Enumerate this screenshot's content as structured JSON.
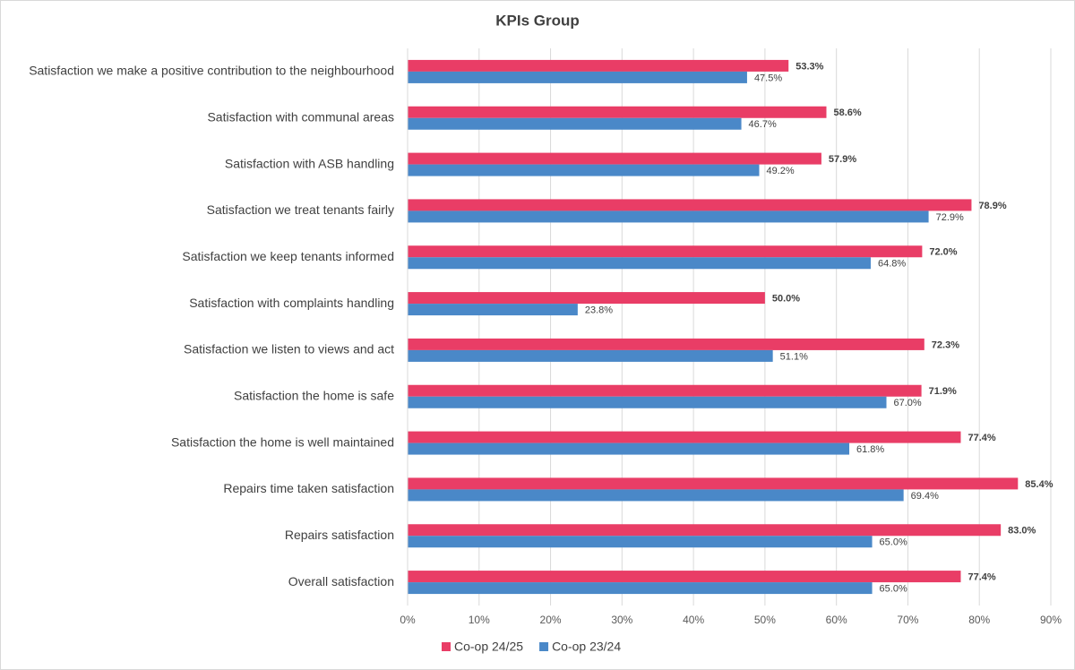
{
  "chart_data": {
    "type": "hbar",
    "title": "KPIs Group",
    "categories": [
      "Satisfaction we make a positive contribution to the neighbourhood",
      "Satisfaction with communal areas",
      "Satisfaction with ASB handling",
      "Satisfaction we treat tenants fairly",
      "Satisfaction we keep tenants informed",
      "Satisfaction with complaints handling",
      "Satisfaction we listen to views and act",
      "Satisfaction the home is safe",
      "Satisfaction the home is well maintained",
      "Repairs time taken satisfaction",
      "Repairs satisfaction",
      "Overall satisfaction"
    ],
    "series": [
      {
        "name": "Co-op 24/25",
        "color": "#e93d66",
        "values": [
          53.3,
          58.6,
          57.9,
          78.9,
          72.0,
          50.0,
          72.3,
          71.9,
          77.4,
          85.4,
          83.0,
          77.4
        ],
        "value_labels": [
          "53.3%",
          "58.6%",
          "57.9%",
          "78.9%",
          "72.0%",
          "50.0%",
          "72.3%",
          "71.9%",
          "77.4%",
          "85.4%",
          "83.0%",
          "77.4%"
        ]
      },
      {
        "name": "Co-op 23/24",
        "color": "#4a88c8",
        "values": [
          47.5,
          46.7,
          49.2,
          72.9,
          64.8,
          23.8,
          51.1,
          67.0,
          61.8,
          69.4,
          65.0,
          65.0
        ],
        "value_labels": [
          "47.5%",
          "46.7%",
          "49.2%",
          "72.9%",
          "64.8%",
          "23.8%",
          "51.1%",
          "67.0%",
          "61.8%",
          "69.4%",
          "65.0%",
          "65.0%"
        ]
      }
    ],
    "xlim": [
      0,
      90
    ],
    "xticks": [
      {
        "value": 0,
        "label": "0%"
      },
      {
        "value": 10,
        "label": "10%"
      },
      {
        "value": 20,
        "label": "20%"
      },
      {
        "value": 30,
        "label": "30%"
      },
      {
        "value": 40,
        "label": "40%"
      },
      {
        "value": 50,
        "label": "50%"
      },
      {
        "value": 60,
        "label": "60%"
      },
      {
        "value": 70,
        "label": "70%"
      },
      {
        "value": 80,
        "label": "80%"
      },
      {
        "value": 90,
        "label": "90%"
      }
    ],
    "grid": true,
    "legend": "bottom"
  }
}
